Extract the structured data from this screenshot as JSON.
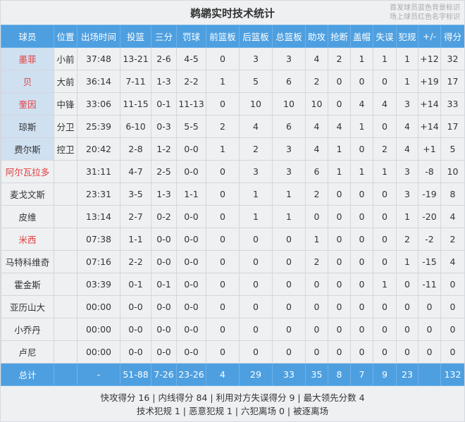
{
  "title": "鹈鹕实时技术统计",
  "legend": [
    "首发球员蓝色背景标识",
    "场上球员红色名字标识"
  ],
  "colors": {
    "header": "#4d9fe0",
    "starter_bg": "#cfe0f1",
    "on_court_name": "#e23b3b"
  },
  "columns": [
    "球员",
    "位置",
    "出场时间",
    "投篮",
    "三分",
    "罚球",
    "前篮板",
    "后篮板",
    "总篮板",
    "助攻",
    "抢断",
    "盖帽",
    "失误",
    "犯规",
    "+/-",
    "得分"
  ],
  "players": [
    {
      "starter": true,
      "on_court": true,
      "cells": [
        "墨菲",
        "小前",
        "37:48",
        "13-21",
        "2-6",
        "4-5",
        "0",
        "3",
        "3",
        "4",
        "2",
        "1",
        "1",
        "1",
        "+12",
        "32"
      ]
    },
    {
      "starter": true,
      "on_court": true,
      "cells": [
        "贝",
        "大前",
        "36:14",
        "7-11",
        "1-3",
        "2-2",
        "1",
        "5",
        "6",
        "2",
        "0",
        "0",
        "0",
        "1",
        "+19",
        "17"
      ]
    },
    {
      "starter": true,
      "on_court": true,
      "cells": [
        "奎因",
        "中锋",
        "33:06",
        "11-15",
        "0-1",
        "11-13",
        "0",
        "10",
        "10",
        "10",
        "0",
        "4",
        "4",
        "3",
        "+14",
        "33"
      ]
    },
    {
      "starter": true,
      "on_court": false,
      "cells": [
        "琼斯",
        "分卫",
        "25:39",
        "6-10",
        "0-3",
        "5-5",
        "2",
        "4",
        "6",
        "4",
        "4",
        "1",
        "0",
        "4",
        "+14",
        "17"
      ]
    },
    {
      "starter": true,
      "on_court": false,
      "cells": [
        "费尔斯",
        "控卫",
        "20:42",
        "2-8",
        "1-2",
        "0-0",
        "1",
        "2",
        "3",
        "4",
        "1",
        "0",
        "2",
        "4",
        "+1",
        "5"
      ]
    },
    {
      "starter": false,
      "on_court": true,
      "cells": [
        "阿尔瓦拉多",
        "",
        "31:11",
        "4-7",
        "2-5",
        "0-0",
        "0",
        "3",
        "3",
        "6",
        "1",
        "1",
        "1",
        "3",
        "-8",
        "10"
      ]
    },
    {
      "starter": false,
      "on_court": false,
      "cells": [
        "麦戈文斯",
        "",
        "23:31",
        "3-5",
        "1-3",
        "1-1",
        "0",
        "1",
        "1",
        "2",
        "0",
        "0",
        "0",
        "3",
        "-19",
        "8"
      ]
    },
    {
      "starter": false,
      "on_court": false,
      "cells": [
        "皮维",
        "",
        "13:14",
        "2-7",
        "0-2",
        "0-0",
        "0",
        "1",
        "1",
        "0",
        "0",
        "0",
        "0",
        "1",
        "-20",
        "4"
      ]
    },
    {
      "starter": false,
      "on_court": true,
      "cells": [
        "米西",
        "",
        "07:38",
        "1-1",
        "0-0",
        "0-0",
        "0",
        "0",
        "0",
        "1",
        "0",
        "0",
        "0",
        "2",
        "-2",
        "2"
      ]
    },
    {
      "starter": false,
      "on_court": false,
      "cells": [
        "马特科维奇",
        "",
        "07:16",
        "2-2",
        "0-0",
        "0-0",
        "0",
        "0",
        "0",
        "2",
        "0",
        "0",
        "0",
        "1",
        "-15",
        "4"
      ]
    },
    {
      "starter": false,
      "on_court": false,
      "cells": [
        "霍金斯",
        "",
        "03:39",
        "0-1",
        "0-1",
        "0-0",
        "0",
        "0",
        "0",
        "0",
        "0",
        "0",
        "1",
        "0",
        "-11",
        "0"
      ]
    },
    {
      "starter": false,
      "on_court": false,
      "cells": [
        "亚历山大",
        "",
        "00:00",
        "0-0",
        "0-0",
        "0-0",
        "0",
        "0",
        "0",
        "0",
        "0",
        "0",
        "0",
        "0",
        "0",
        "0"
      ]
    },
    {
      "starter": false,
      "on_court": false,
      "cells": [
        "小乔丹",
        "",
        "00:00",
        "0-0",
        "0-0",
        "0-0",
        "0",
        "0",
        "0",
        "0",
        "0",
        "0",
        "0",
        "0",
        "0",
        "0"
      ]
    },
    {
      "starter": false,
      "on_court": false,
      "cells": [
        "卢尼",
        "",
        "00:00",
        "0-0",
        "0-0",
        "0-0",
        "0",
        "0",
        "0",
        "0",
        "0",
        "0",
        "0",
        "0",
        "0",
        "0"
      ]
    }
  ],
  "total": [
    "总计",
    "",
    "-",
    "51-88",
    "7-26",
    "23-26",
    "4",
    "29",
    "33",
    "35",
    "8",
    "7",
    "9",
    "23",
    "",
    "132"
  ],
  "footer": [
    "快攻得分 16 | 内线得分 84 | 利用对方失误得分 9 | 最大领先分数 4",
    "技术犯规 1 | 恶意犯规 1 | 六犯离场 0 | 被逐离场"
  ]
}
